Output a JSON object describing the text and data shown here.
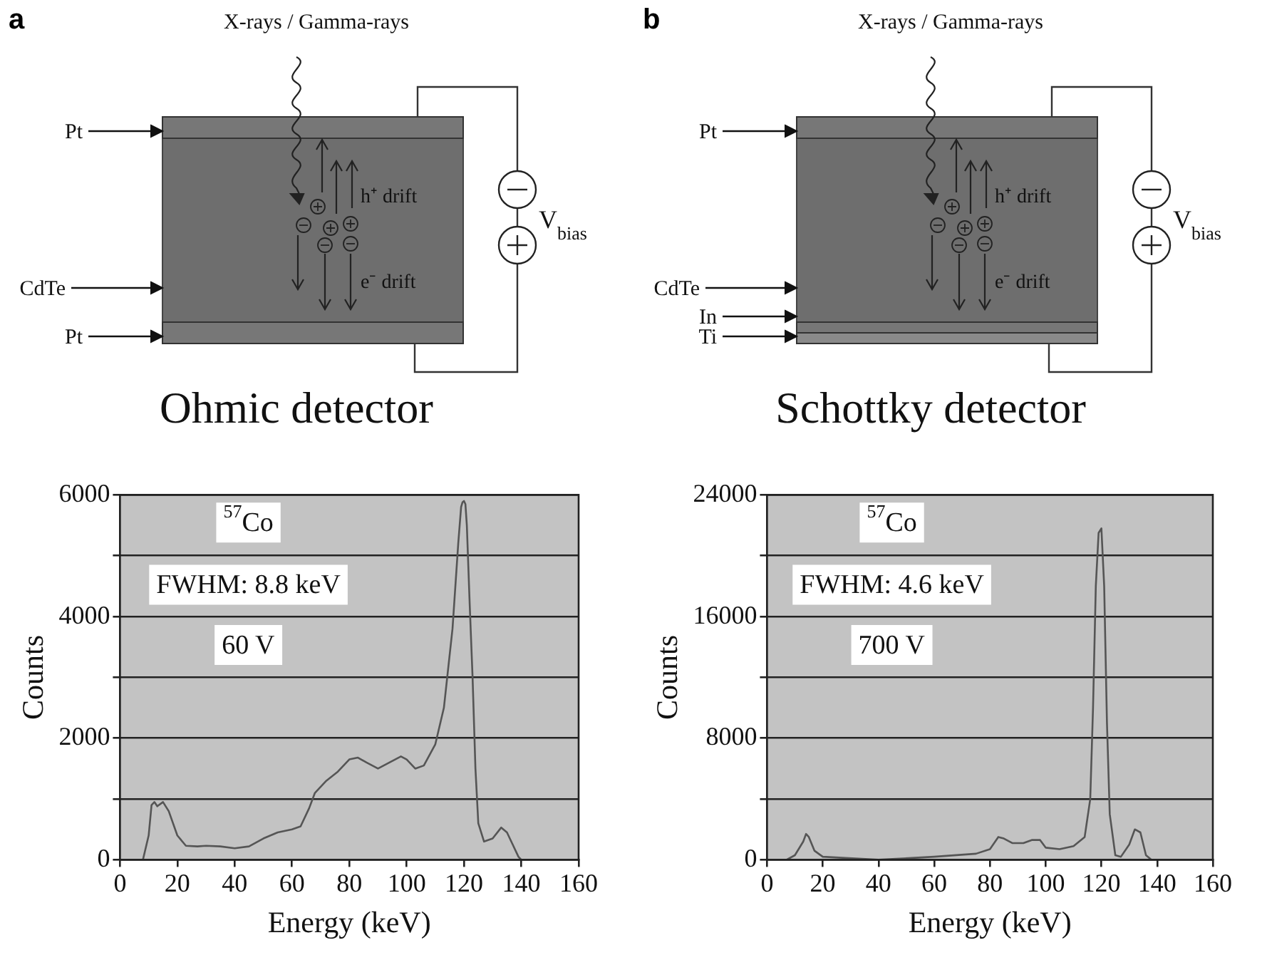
{
  "chart_data": [
    {
      "type": "line",
      "title": "Ohmic detector",
      "xlabel": "Energy (keV)",
      "ylabel": "Counts",
      "annotations": [
        "$^{57}$Co",
        "FWHM: 8.8 keV",
        "60 V",
        "a",
        "X-rays / Gamma-rays",
        "h⁺ drift",
        "e⁻ drift",
        "V$_{bias}$",
        "Pt",
        "CdTe",
        "Pt"
      ],
      "x": [
        5,
        8,
        10,
        11,
        12,
        13,
        15,
        17,
        20,
        23,
        27,
        30,
        35,
        40,
        45,
        50,
        55,
        60,
        63,
        66,
        68,
        72,
        76,
        80,
        83,
        86,
        90,
        94,
        98,
        100,
        103,
        106,
        110,
        113,
        116,
        118,
        119,
        119.5,
        120,
        120.5,
        121,
        122,
        123,
        124,
        125,
        127,
        130,
        133,
        135,
        137,
        139,
        140,
        150,
        155
      ],
      "series": [
        {
          "color": "#555555",
          "values": [
            0,
            0,
            400,
            900,
            950,
            880,
            950,
            800,
            400,
            230,
            220,
            230,
            220,
            190,
            220,
            350,
            450,
            500,
            550,
            850,
            1100,
            1300,
            1450,
            1650,
            1680,
            1600,
            1500,
            1600,
            1700,
            1650,
            1500,
            1550,
            1900,
            2500,
            3800,
            5200,
            5800,
            5880,
            5900,
            5850,
            5500,
            4200,
            3000,
            1500,
            600,
            300,
            350,
            530,
            450,
            250,
            50,
            0,
            0,
            0
          ]
        }
      ],
      "xlim": [
        0,
        160
      ],
      "xticks": [
        0,
        20,
        40,
        60,
        80,
        100,
        120,
        140,
        160
      ],
      "ylim": [
        0,
        6000
      ],
      "yticks": [
        0,
        {
          "value": 1000,
          "label": null
        },
        2000,
        {
          "value": 3000,
          "label": null
        },
        4000,
        {
          "value": 5000,
          "label": null
        },
        6000
      ],
      "grid": "y",
      "marker": "none"
    },
    {
      "type": "line",
      "title": "Schottky detector",
      "xlabel": "Energy (keV)",
      "ylabel": "Counts",
      "annotations": [
        "$^{57}$Co",
        "FWHM: 4.6 keV",
        "700 V",
        "b",
        "X-rays / Gamma-rays",
        "h⁺ drift",
        "e⁻ drift",
        "V$_{bias}$",
        "Pt",
        "CdTe",
        "In",
        "Ti"
      ],
      "x": [
        7,
        10,
        13,
        14,
        15,
        17,
        20,
        40,
        60,
        75,
        80,
        83,
        85,
        88,
        92,
        95,
        98,
        100,
        105,
        110,
        114,
        116,
        117,
        118,
        119,
        120,
        121,
        122,
        123,
        125,
        127,
        130,
        132,
        134,
        136,
        138
      ],
      "series": [
        {
          "color": "#555555",
          "values": [
            0,
            300,
            1200,
            1700,
            1500,
            600,
            200,
            0,
            200,
            400,
            700,
            1500,
            1400,
            1100,
            1100,
            1300,
            1300,
            800,
            700,
            900,
            1500,
            4000,
            10000,
            18000,
            21500,
            21800,
            18000,
            9000,
            3000,
            300,
            200,
            1000,
            2000,
            1800,
            300,
            0
          ]
        }
      ],
      "xlim": [
        0,
        160
      ],
      "xticks": [
        0,
        20,
        40,
        60,
        80,
        100,
        120,
        140,
        160
      ],
      "ylim": [
        0,
        24000
      ],
      "yticks": [
        0,
        {
          "value": 4000,
          "label": null
        },
        8000,
        {
          "value": 12000,
          "label": null
        },
        16000,
        {
          "value": 20000,
          "label": null
        },
        24000
      ],
      "grid": "y",
      "marker": "none"
    }
  ]
}
